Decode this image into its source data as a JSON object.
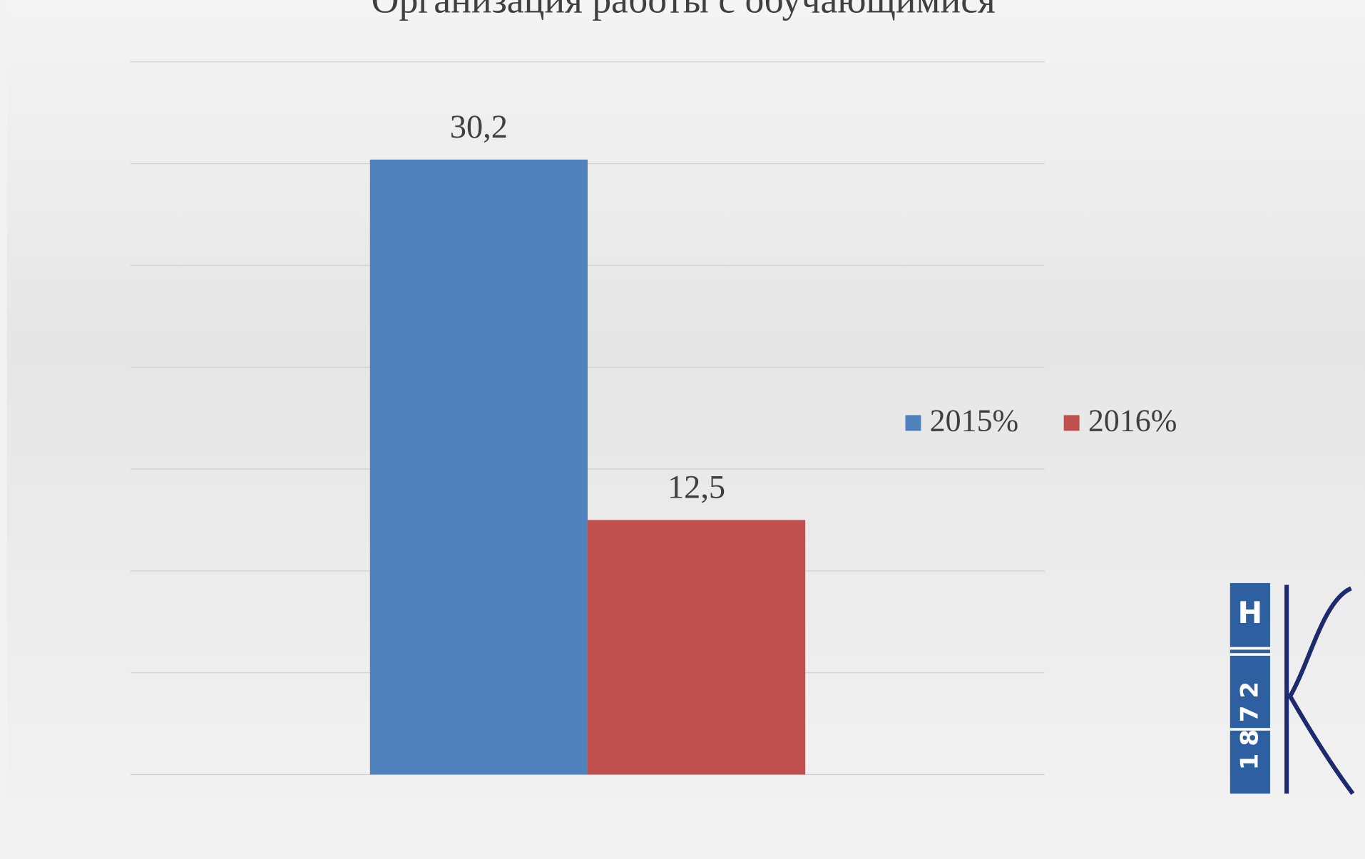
{
  "chart_data": {
    "type": "bar",
    "title": "Организация работы с обучающимися",
    "categories": [
      null
    ],
    "series": [
      {
        "name": "2015%",
        "color": "#4f81bd",
        "values": [
          30.2
        ],
        "value_labels": [
          "30,2"
        ]
      },
      {
        "name": "2016%",
        "color": "#c0504d",
        "values": [
          12.5
        ],
        "value_labels": [
          "12,5"
        ]
      }
    ],
    "ylim": [
      0,
      35
    ],
    "yticks": [
      0,
      5,
      10,
      15,
      20,
      25,
      30,
      35
    ],
    "grid": true,
    "legend": "right"
  },
  "logo": {
    "letter": "Н",
    "year": "1872"
  }
}
